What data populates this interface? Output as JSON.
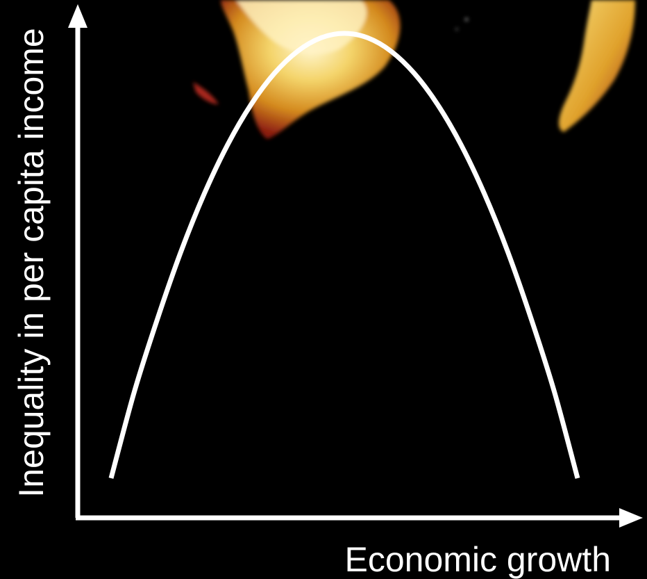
{
  "chart_data": {
    "type": "line",
    "title": "",
    "xlabel": "Economic growth",
    "ylabel": "Inequality in per capita income",
    "xlim": [
      0,
      1
    ],
    "ylim": [
      0,
      1
    ],
    "grid": false,
    "series": [
      {
        "shape": "inverted-u",
        "x": [
          0.0,
          0.05,
          0.1,
          0.15,
          0.2,
          0.25,
          0.3,
          0.35,
          0.4,
          0.45,
          0.5,
          0.55,
          0.6,
          0.65,
          0.7,
          0.75,
          0.8,
          0.85,
          0.9,
          0.95,
          1.0
        ],
        "y": [
          0.0,
          0.195,
          0.36,
          0.51,
          0.64,
          0.75,
          0.84,
          0.91,
          0.96,
          0.99,
          1.0,
          0.99,
          0.96,
          0.91,
          0.84,
          0.75,
          0.64,
          0.51,
          0.36,
          0.195,
          0.0
        ]
      }
    ]
  },
  "colors": {
    "background": "#000000",
    "foreground": "#ffffff",
    "glow_bright": "#ffe9a0",
    "glow_mid": "#f2c23a",
    "glow_dark": "#b3261e"
  },
  "decor": {
    "background_image": "glowing-continent-map-fragment"
  }
}
